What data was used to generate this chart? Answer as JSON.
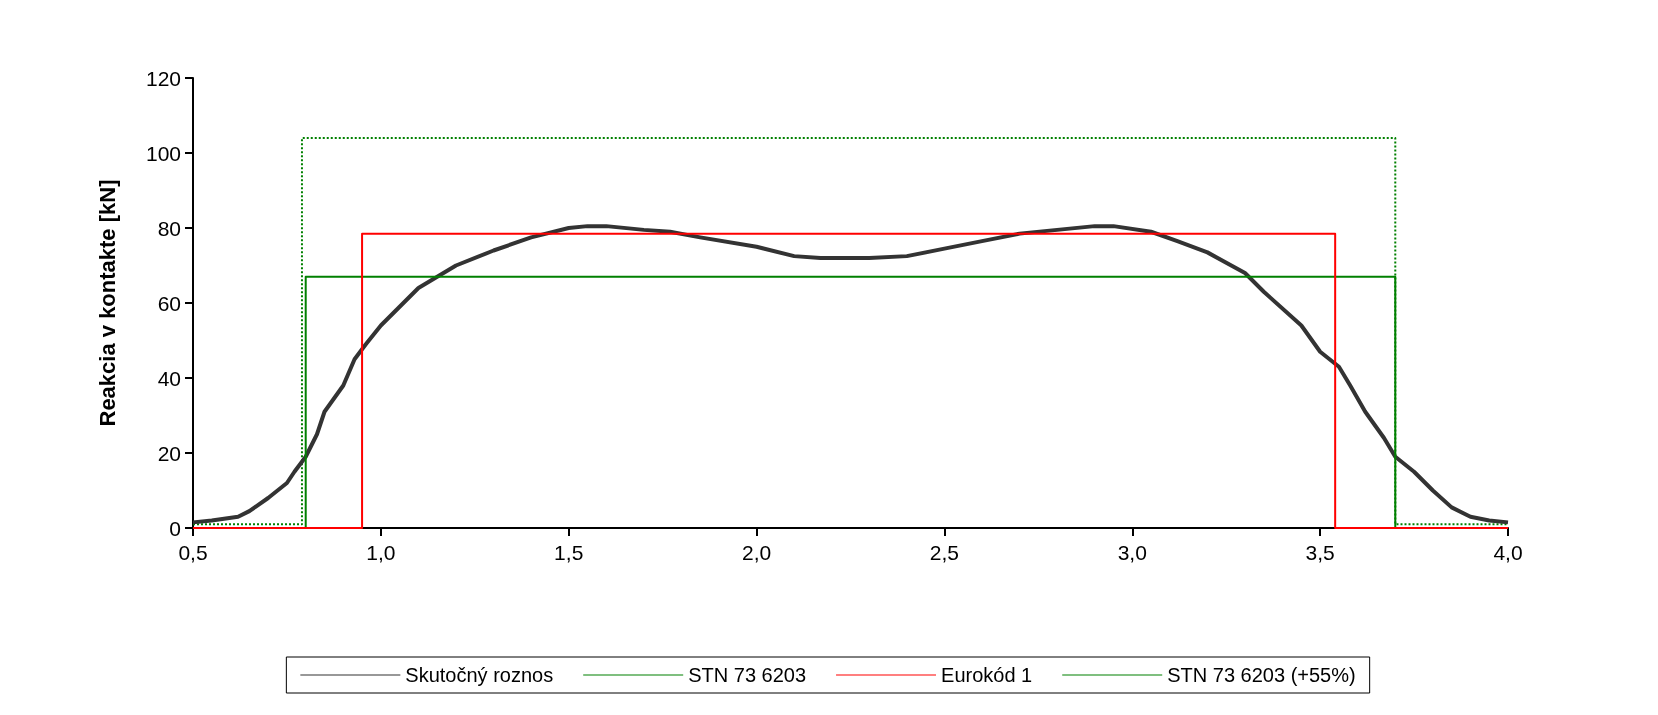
{
  "chart_data": {
    "type": "line",
    "ylabel": "Reakcia v kontakte [kN]",
    "xlim": [
      0.5,
      4.0
    ],
    "ylim": [
      0,
      120
    ],
    "xticks": [
      {
        "value": 0.5,
        "label": "0,5"
      },
      {
        "value": 1.0,
        "label": "1,0"
      },
      {
        "value": 1.5,
        "label": "1,5"
      },
      {
        "value": 2.0,
        "label": "2,0"
      },
      {
        "value": 2.5,
        "label": "2,5"
      },
      {
        "value": 3.0,
        "label": "3,0"
      },
      {
        "value": 3.5,
        "label": "3,5"
      },
      {
        "value": 4.0,
        "label": "4,0"
      }
    ],
    "yticks": [
      0,
      20,
      40,
      60,
      80,
      100,
      120
    ],
    "grid": false,
    "legend": "bottom",
    "marker": "none",
    "series": [
      {
        "name": "Skutočný roznos",
        "color": "#333333",
        "line_style": "solid",
        "x": [
          0.5,
          0.55,
          0.62,
          0.65,
          0.7,
          0.75,
          0.77,
          0.8,
          0.83,
          0.85,
          0.9,
          0.93,
          0.96,
          1.0,
          1.05,
          1.1,
          1.15,
          1.2,
          1.3,
          1.4,
          1.5,
          1.55,
          1.6,
          1.7,
          1.77,
          1.85,
          2.0,
          2.1,
          2.17,
          2.3,
          2.4,
          2.5,
          2.6,
          2.7,
          2.8,
          2.9,
          2.95,
          3.05,
          3.12,
          3.2,
          3.3,
          3.35,
          3.45,
          3.5,
          3.55,
          3.58,
          3.62,
          3.67,
          3.7,
          3.75,
          3.8,
          3.85,
          3.9,
          3.95,
          4.0
        ],
        "values": [
          1.5,
          2,
          3,
          4.5,
          8,
          12,
          15,
          19,
          25,
          31,
          38,
          45,
          49,
          54,
          59,
          64,
          67,
          70,
          74,
          77.5,
          80,
          80.5,
          80.5,
          79.5,
          79,
          77.5,
          75,
          72.5,
          72,
          72,
          72.5,
          74.5,
          76.5,
          78.5,
          79.5,
          80.5,
          80.5,
          79,
          76.5,
          73.5,
          68,
          63,
          54,
          47,
          43,
          38,
          31,
          24,
          19,
          15,
          10,
          5.5,
          3,
          2,
          1.5
        ]
      },
      {
        "name": "STN 73 6203",
        "color": "#008000",
        "line_style": "solid",
        "x": [
          0.5,
          0.8,
          0.8,
          3.7,
          3.7,
          4.0
        ],
        "values": [
          0,
          0,
          67,
          67,
          0,
          0
        ]
      },
      {
        "name": "Eurokód 1",
        "color": "#ff0000",
        "line_style": "solid",
        "x": [
          0.5,
          0.95,
          0.95,
          3.54,
          3.54,
          4.0
        ],
        "values": [
          0,
          0,
          78.5,
          78.5,
          0,
          0
        ]
      },
      {
        "name": "STN 73 6203 (+55%)",
        "color": "#008000",
        "line_style": "dotted",
        "x": [
          0.5,
          0.79,
          0.79,
          3.7,
          3.7,
          4.0
        ],
        "values": [
          1,
          1,
          104,
          104,
          1,
          1
        ]
      }
    ]
  }
}
